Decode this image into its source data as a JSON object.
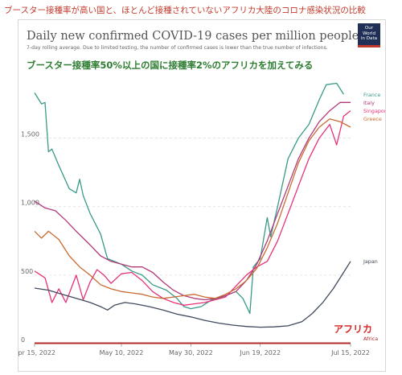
{
  "page_caption": "ブースター接種率が高い国と、ほとんど接種されていないアフリカ大陸のコロナ感染状況の比較",
  "logo": {
    "line1": "Our World",
    "line2": "in Data"
  },
  "colors": {
    "France": "#3a9a88",
    "Italy": "#b03a78",
    "Singapore": "#e6327a",
    "Greece": "#c96a34",
    "Japan": "#404a5c",
    "Africa": "#b02a2a",
    "annotation": "#2e7d32",
    "africa_label": "#d62728"
  },
  "chart_data": {
    "type": "line",
    "title": "Daily new confirmed COVID-19 cases per million people",
    "subtitle": "7-day rolling average. Due to limited testing, the number of confirmed cases is lower than the true number of infections.",
    "annotation": "ブースター接種率50%以上の国に接種率2%のアフリカを加えてみる",
    "africa_callout": "アフリカ",
    "x_tick_labels": [
      "Apr 15, 2022",
      "May 10, 2022",
      "May 30, 2022",
      "Jun 19, 2022",
      "Jul 15, 2022"
    ],
    "x_tick_dates": [
      "2022-04-15",
      "2022-05-10",
      "2022-05-30",
      "2022-06-19",
      "2022-07-15"
    ],
    "x_range": [
      "2022-04-15",
      "2022-07-15"
    ],
    "y_tick_labels": [
      "0",
      "500",
      "1,000",
      "1,500"
    ],
    "y_ticks": [
      0,
      500,
      1000,
      1500
    ],
    "ylim": [
      0,
      1950
    ],
    "grid": true,
    "legend": "right",
    "series": [
      {
        "name": "France",
        "points": [
          [
            "2022-04-15",
            1830
          ],
          [
            "2022-04-17",
            1750
          ],
          [
            "2022-04-18",
            1760
          ],
          [
            "2022-04-19",
            1400
          ],
          [
            "2022-04-20",
            1420
          ],
          [
            "2022-04-22",
            1300
          ],
          [
            "2022-04-25",
            1130
          ],
          [
            "2022-04-27",
            1100
          ],
          [
            "2022-04-28",
            1200
          ],
          [
            "2022-04-29",
            1080
          ],
          [
            "2022-05-01",
            950
          ],
          [
            "2022-05-04",
            800
          ],
          [
            "2022-05-06",
            620
          ],
          [
            "2022-05-10",
            580
          ],
          [
            "2022-05-13",
            530
          ],
          [
            "2022-05-16",
            500
          ],
          [
            "2022-05-19",
            430
          ],
          [
            "2022-05-23",
            390
          ],
          [
            "2022-05-26",
            330
          ],
          [
            "2022-05-28",
            270
          ],
          [
            "2022-05-30",
            255
          ],
          [
            "2022-06-02",
            270
          ],
          [
            "2022-06-05",
            320
          ],
          [
            "2022-06-08",
            340
          ],
          [
            "2022-06-10",
            360
          ],
          [
            "2022-06-12",
            380
          ],
          [
            "2022-06-14",
            330
          ],
          [
            "2022-06-16",
            220
          ],
          [
            "2022-06-17",
            560
          ],
          [
            "2022-06-19",
            620
          ],
          [
            "2022-06-21",
            920
          ],
          [
            "2022-06-22",
            780
          ],
          [
            "2022-06-24",
            1000
          ],
          [
            "2022-06-27",
            1350
          ],
          [
            "2022-06-30",
            1500
          ],
          [
            "2022-07-03",
            1600
          ],
          [
            "2022-07-06",
            1780
          ],
          [
            "2022-07-08",
            1890
          ],
          [
            "2022-07-11",
            1900
          ],
          [
            "2022-07-13",
            1820
          ]
        ]
      },
      {
        "name": "Italy",
        "points": [
          [
            "2022-04-15",
            1040
          ],
          [
            "2022-04-18",
            990
          ],
          [
            "2022-04-21",
            970
          ],
          [
            "2022-04-24",
            900
          ],
          [
            "2022-04-27",
            820
          ],
          [
            "2022-05-01",
            720
          ],
          [
            "2022-05-04",
            640
          ],
          [
            "2022-05-07",
            600
          ],
          [
            "2022-05-10",
            580
          ],
          [
            "2022-05-13",
            560
          ],
          [
            "2022-05-16",
            560
          ],
          [
            "2022-05-19",
            520
          ],
          [
            "2022-05-22",
            450
          ],
          [
            "2022-05-25",
            390
          ],
          [
            "2022-05-28",
            350
          ],
          [
            "2022-05-31",
            330
          ],
          [
            "2022-06-03",
            320
          ],
          [
            "2022-06-06",
            330
          ],
          [
            "2022-06-09",
            350
          ],
          [
            "2022-06-12",
            380
          ],
          [
            "2022-06-15",
            460
          ],
          [
            "2022-06-18",
            580
          ],
          [
            "2022-06-21",
            750
          ],
          [
            "2022-06-24",
            950
          ],
          [
            "2022-06-27",
            1150
          ],
          [
            "2022-06-30",
            1350
          ],
          [
            "2022-07-03",
            1500
          ],
          [
            "2022-07-06",
            1620
          ],
          [
            "2022-07-09",
            1700
          ],
          [
            "2022-07-12",
            1760
          ],
          [
            "2022-07-15",
            1760
          ]
        ]
      },
      {
        "name": "Singapore",
        "points": [
          [
            "2022-04-15",
            530
          ],
          [
            "2022-04-18",
            480
          ],
          [
            "2022-04-20",
            300
          ],
          [
            "2022-04-22",
            400
          ],
          [
            "2022-04-24",
            300
          ],
          [
            "2022-04-27",
            500
          ],
          [
            "2022-04-29",
            320
          ],
          [
            "2022-05-01",
            450
          ],
          [
            "2022-05-03",
            540
          ],
          [
            "2022-05-05",
            500
          ],
          [
            "2022-05-07",
            440
          ],
          [
            "2022-05-10",
            510
          ],
          [
            "2022-05-13",
            520
          ],
          [
            "2022-05-16",
            460
          ],
          [
            "2022-05-19",
            380
          ],
          [
            "2022-05-22",
            330
          ],
          [
            "2022-05-25",
            300
          ],
          [
            "2022-05-28",
            280
          ],
          [
            "2022-05-31",
            290
          ],
          [
            "2022-06-03",
            300
          ],
          [
            "2022-06-06",
            320
          ],
          [
            "2022-06-09",
            340
          ],
          [
            "2022-06-12",
            420
          ],
          [
            "2022-06-15",
            500
          ],
          [
            "2022-06-18",
            560
          ],
          [
            "2022-06-21",
            600
          ],
          [
            "2022-06-24",
            750
          ],
          [
            "2022-06-27",
            950
          ],
          [
            "2022-06-30",
            1150
          ],
          [
            "2022-07-03",
            1350
          ],
          [
            "2022-07-06",
            1500
          ],
          [
            "2022-07-09",
            1600
          ],
          [
            "2022-07-11",
            1450
          ],
          [
            "2022-07-13",
            1660
          ],
          [
            "2022-07-15",
            1700
          ]
        ]
      },
      {
        "name": "Greece",
        "points": [
          [
            "2022-04-15",
            820
          ],
          [
            "2022-04-17",
            770
          ],
          [
            "2022-04-19",
            820
          ],
          [
            "2022-04-22",
            760
          ],
          [
            "2022-04-25",
            640
          ],
          [
            "2022-04-28",
            560
          ],
          [
            "2022-05-01",
            500
          ],
          [
            "2022-05-04",
            430
          ],
          [
            "2022-05-07",
            400
          ],
          [
            "2022-05-10",
            380
          ],
          [
            "2022-05-13",
            370
          ],
          [
            "2022-05-16",
            360
          ],
          [
            "2022-05-19",
            340
          ],
          [
            "2022-05-22",
            330
          ],
          [
            "2022-05-25",
            340
          ],
          [
            "2022-05-28",
            350
          ],
          [
            "2022-05-31",
            360
          ],
          [
            "2022-06-03",
            340
          ],
          [
            "2022-06-06",
            330
          ],
          [
            "2022-06-09",
            360
          ],
          [
            "2022-06-12",
            400
          ],
          [
            "2022-06-15",
            460
          ],
          [
            "2022-06-18",
            550
          ],
          [
            "2022-06-21",
            700
          ],
          [
            "2022-06-24",
            880
          ],
          [
            "2022-06-27",
            1100
          ],
          [
            "2022-06-30",
            1320
          ],
          [
            "2022-07-03",
            1480
          ],
          [
            "2022-07-06",
            1580
          ],
          [
            "2022-07-09",
            1640
          ],
          [
            "2022-07-12",
            1620
          ],
          [
            "2022-07-15",
            1580
          ]
        ]
      },
      {
        "name": "Japan",
        "points": [
          [
            "2022-04-15",
            405
          ],
          [
            "2022-04-19",
            390
          ],
          [
            "2022-04-23",
            360
          ],
          [
            "2022-04-27",
            330
          ],
          [
            "2022-05-01",
            300
          ],
          [
            "2022-05-04",
            270
          ],
          [
            "2022-05-06",
            245
          ],
          [
            "2022-05-08",
            280
          ],
          [
            "2022-05-11",
            300
          ],
          [
            "2022-05-14",
            290
          ],
          [
            "2022-05-18",
            270
          ],
          [
            "2022-05-22",
            245
          ],
          [
            "2022-05-26",
            215
          ],
          [
            "2022-05-30",
            195
          ],
          [
            "2022-06-03",
            170
          ],
          [
            "2022-06-07",
            150
          ],
          [
            "2022-06-11",
            135
          ],
          [
            "2022-06-15",
            125
          ],
          [
            "2022-06-19",
            120
          ],
          [
            "2022-06-23",
            122
          ],
          [
            "2022-06-27",
            130
          ],
          [
            "2022-07-01",
            160
          ],
          [
            "2022-07-04",
            220
          ],
          [
            "2022-07-07",
            300
          ],
          [
            "2022-07-10",
            400
          ],
          [
            "2022-07-13",
            520
          ],
          [
            "2022-07-15",
            600
          ]
        ]
      },
      {
        "name": "Africa",
        "points": [
          [
            "2022-04-15",
            3
          ],
          [
            "2022-05-10",
            3
          ],
          [
            "2022-05-30",
            3
          ],
          [
            "2022-06-19",
            3
          ],
          [
            "2022-07-15",
            3
          ]
        ]
      }
    ]
  }
}
